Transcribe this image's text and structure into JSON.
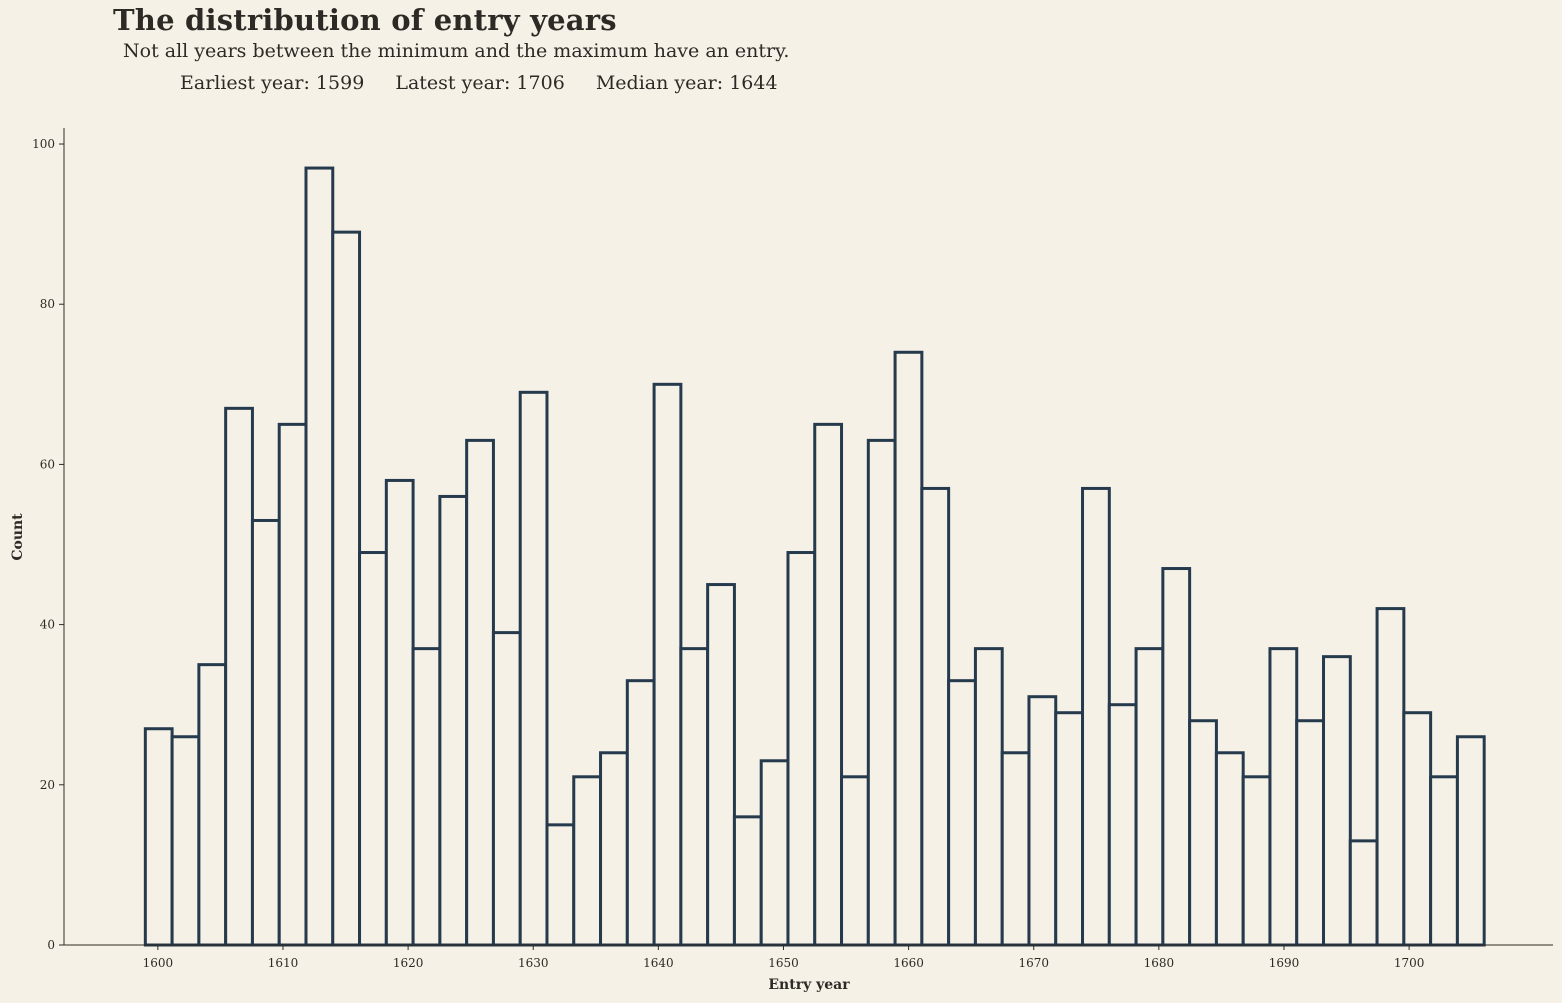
{
  "header": {
    "title": "The distribution of entry years",
    "subtitle": "Not all years between the minimum and the maximum have an entry.",
    "earliest": "Earliest year: 1599",
    "latest": "Latest year: 1706",
    "median": "Median year: 1644"
  },
  "colors": {
    "background": "#f6f1e7",
    "bar_edge": "#253a4d",
    "text": "#2d2a26"
  },
  "chart_data": {
    "type": "bar",
    "title": "The distribution of entry years",
    "xlabel": "Entry year",
    "ylabel": "Count",
    "xlim": [
      1592.5,
      1711.5
    ],
    "ylim": [
      0,
      102
    ],
    "xticks": [
      1600,
      1610,
      1620,
      1630,
      1640,
      1650,
      1660,
      1670,
      1680,
      1690,
      1700
    ],
    "yticks": [
      0,
      20,
      40,
      60,
      80,
      100
    ],
    "bin_start": 1599,
    "bin_width": 2.14,
    "values": [
      27,
      26,
      35,
      67,
      53,
      65,
      97,
      89,
      49,
      58,
      37,
      56,
      63,
      39,
      69,
      15,
      21,
      24,
      33,
      70,
      37,
      45,
      16,
      23,
      49,
      65,
      21,
      63,
      74,
      57,
      33,
      37,
      24,
      31,
      29,
      57,
      30,
      37,
      47,
      28,
      24,
      21,
      37,
      28,
      36,
      13,
      42,
      29,
      21,
      26
    ],
    "grid": false,
    "legend": "none"
  }
}
